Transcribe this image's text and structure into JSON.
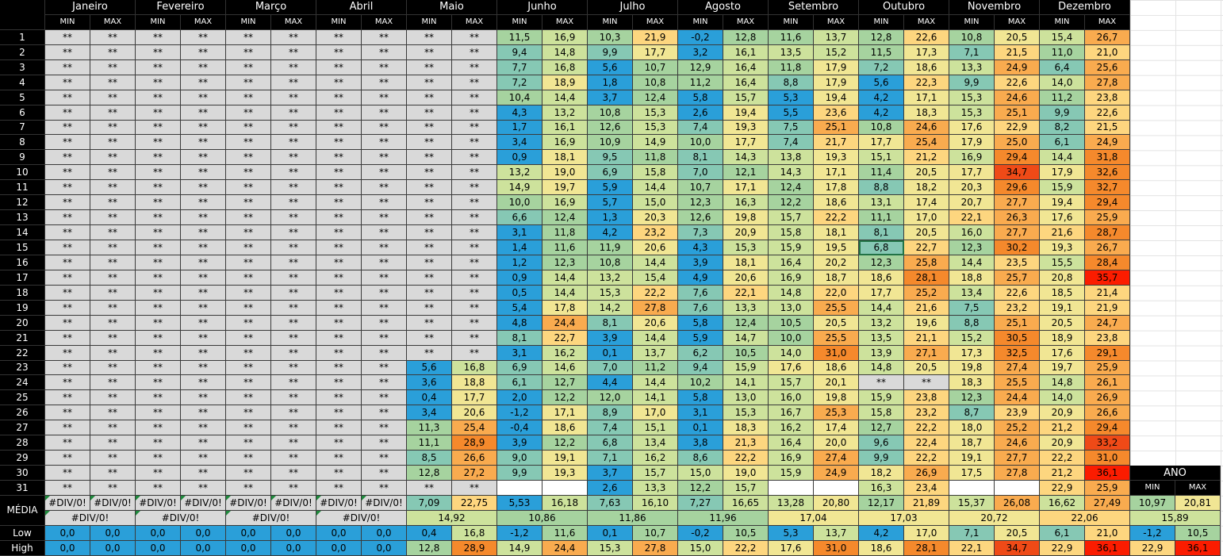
{
  "months": [
    "Janeiro",
    "Fevereiro",
    "Março",
    "Abril",
    "Maio",
    "Junho",
    "Julho",
    "Agosto",
    "Setembro",
    "Outubro",
    "Novembro",
    "Dezembro"
  ],
  "subheaders": [
    "MIN",
    "MAX"
  ],
  "rows": [
    {
      "day": "1",
      "cells": [
        "**",
        "**",
        "**",
        "**",
        "**",
        "**",
        "**",
        "**",
        "**",
        "**",
        "11,5",
        "16,9",
        "10,3",
        "21,9",
        "-0,2",
        "12,8",
        "11,6",
        "13,7",
        "12,8",
        "22,6",
        "10,8",
        "20,5",
        "15,4",
        "26,7"
      ]
    },
    {
      "day": "2",
      "cells": [
        "**",
        "**",
        "**",
        "**",
        "**",
        "**",
        "**",
        "**",
        "**",
        "**",
        "9,4",
        "14,8",
        "9,9",
        "17,7",
        "3,2",
        "16,1",
        "13,5",
        "15,2",
        "11,5",
        "17,3",
        "7,1",
        "21,5",
        "11,0",
        "21,0"
      ]
    },
    {
      "day": "3",
      "cells": [
        "**",
        "**",
        "**",
        "**",
        "**",
        "**",
        "**",
        "**",
        "**",
        "**",
        "7,7",
        "16,8",
        "5,6",
        "10,7",
        "12,9",
        "16,4",
        "11,8",
        "17,9",
        "7,2",
        "18,6",
        "13,3",
        "24,9",
        "6,4",
        "25,6"
      ]
    },
    {
      "day": "4",
      "cells": [
        "**",
        "**",
        "**",
        "**",
        "**",
        "**",
        "**",
        "**",
        "**",
        "**",
        "7,2",
        "18,9",
        "1,8",
        "10,8",
        "11,2",
        "16,4",
        "8,8",
        "17,9",
        "5,6",
        "22,3",
        "9,9",
        "22,6",
        "14,0",
        "27,8"
      ]
    },
    {
      "day": "5",
      "cells": [
        "**",
        "**",
        "**",
        "**",
        "**",
        "**",
        "**",
        "**",
        "**",
        "**",
        "10,4",
        "14,4",
        "3,7",
        "12,4",
        "5,8",
        "15,7",
        "5,3",
        "19,4",
        "4,2",
        "17,1",
        "15,3",
        "24,6",
        "11,2",
        "23,8"
      ]
    },
    {
      "day": "6",
      "cells": [
        "**",
        "**",
        "**",
        "**",
        "**",
        "**",
        "**",
        "**",
        "**",
        "**",
        "4,3",
        "13,2",
        "10,8",
        "15,3",
        "2,6",
        "19,4",
        "5,5",
        "23,6",
        "4,2",
        "18,3",
        "15,3",
        "25,1",
        "9,9",
        "22,6"
      ]
    },
    {
      "day": "7",
      "cells": [
        "**",
        "**",
        "**",
        "**",
        "**",
        "**",
        "**",
        "**",
        "**",
        "**",
        "1,7",
        "16,1",
        "12,6",
        "15,3",
        "7,4",
        "19,3",
        "7,5",
        "25,1",
        "10,8",
        "24,6",
        "17,6",
        "22,9",
        "8,2",
        "21,5"
      ]
    },
    {
      "day": "8",
      "cells": [
        "**",
        "**",
        "**",
        "**",
        "**",
        "**",
        "**",
        "**",
        "**",
        "**",
        "3,4",
        "16,9",
        "10,9",
        "14,9",
        "10,0",
        "17,7",
        "7,4",
        "21,7",
        "17,7",
        "25,4",
        "17,9",
        "25,0",
        "6,1",
        "24,9"
      ]
    },
    {
      "day": "9",
      "cells": [
        "**",
        "**",
        "**",
        "**",
        "**",
        "**",
        "**",
        "**",
        "**",
        "**",
        "0,9",
        "18,1",
        "9,5",
        "11,8",
        "8,1",
        "14,3",
        "13,8",
        "19,3",
        "15,1",
        "21,2",
        "16,9",
        "29,4",
        "14,4",
        "31,8"
      ]
    },
    {
      "day": "10",
      "cells": [
        "**",
        "**",
        "**",
        "**",
        "**",
        "**",
        "**",
        "**",
        "**",
        "**",
        "13,2",
        "19,0",
        "6,9",
        "15,8",
        "7,0",
        "12,1",
        "14,3",
        "17,1",
        "11,4",
        "20,5",
        "17,7",
        "34,7",
        "17,9",
        "32,6"
      ]
    },
    {
      "day": "11",
      "cells": [
        "**",
        "**",
        "**",
        "**",
        "**",
        "**",
        "**",
        "**",
        "**",
        "**",
        "14,9",
        "19,7",
        "5,9",
        "14,4",
        "10,7",
        "17,1",
        "12,4",
        "17,8",
        "8,8",
        "18,2",
        "20,3",
        "29,6",
        "15,9",
        "32,7"
      ]
    },
    {
      "day": "12",
      "cells": [
        "**",
        "**",
        "**",
        "**",
        "**",
        "**",
        "**",
        "**",
        "**",
        "**",
        "10,0",
        "16,9",
        "5,7",
        "15,0",
        "12,3",
        "16,3",
        "12,2",
        "18,6",
        "13,1",
        "17,4",
        "20,7",
        "27,7",
        "19,4",
        "29,4"
      ]
    },
    {
      "day": "13",
      "cells": [
        "**",
        "**",
        "**",
        "**",
        "**",
        "**",
        "**",
        "**",
        "**",
        "**",
        "6,6",
        "12,4",
        "1,3",
        "20,3",
        "12,6",
        "19,8",
        "15,7",
        "22,2",
        "11,1",
        "17,0",
        "22,1",
        "26,3",
        "17,6",
        "25,9"
      ]
    },
    {
      "day": "14",
      "cells": [
        "**",
        "**",
        "**",
        "**",
        "**",
        "**",
        "**",
        "**",
        "**",
        "**",
        "3,1",
        "11,8",
        "4,2",
        "23,2",
        "7,3",
        "20,9",
        "15,8",
        "18,1",
        "8,1",
        "20,5",
        "16,0",
        "27,7",
        "21,6",
        "28,7"
      ]
    },
    {
      "day": "15",
      "cells": [
        "**",
        "**",
        "**",
        "**",
        "**",
        "**",
        "**",
        "**",
        "**",
        "**",
        "1,4",
        "11,6",
        "11,9",
        "20,6",
        "4,3",
        "15,3",
        "15,9",
        "19,5",
        "6,8",
        "22,7",
        "12,3",
        "30,2",
        "19,3",
        "26,7"
      ]
    },
    {
      "day": "16",
      "cells": [
        "**",
        "**",
        "**",
        "**",
        "**",
        "**",
        "**",
        "**",
        "**",
        "**",
        "1,2",
        "12,3",
        "10,8",
        "14,4",
        "3,9",
        "18,1",
        "16,4",
        "20,2",
        "12,3",
        "25,8",
        "14,4",
        "23,5",
        "15,5",
        "28,4"
      ]
    },
    {
      "day": "17",
      "cells": [
        "**",
        "**",
        "**",
        "**",
        "**",
        "**",
        "**",
        "**",
        "**",
        "**",
        "0,9",
        "14,4",
        "13,2",
        "15,4",
        "4,9",
        "20,6",
        "16,9",
        "18,7",
        "18,6",
        "28,1",
        "18,8",
        "25,7",
        "20,8",
        "35,7"
      ]
    },
    {
      "day": "18",
      "cells": [
        "**",
        "**",
        "**",
        "**",
        "**",
        "**",
        "**",
        "**",
        "**",
        "**",
        "0,5",
        "14,4",
        "15,3",
        "22,2",
        "7,6",
        "22,1",
        "14,8",
        "22,0",
        "17,7",
        "25,2",
        "13,4",
        "22,6",
        "18,5",
        "21,4"
      ]
    },
    {
      "day": "19",
      "cells": [
        "**",
        "**",
        "**",
        "**",
        "**",
        "**",
        "**",
        "**",
        "**",
        "**",
        "5,4",
        "17,8",
        "14,2",
        "27,8",
        "7,6",
        "13,3",
        "13,0",
        "25,5",
        "14,4",
        "21,6",
        "7,5",
        "23,2",
        "19,1",
        "21,9"
      ]
    },
    {
      "day": "20",
      "cells": [
        "**",
        "**",
        "**",
        "**",
        "**",
        "**",
        "**",
        "**",
        "**",
        "**",
        "4,8",
        "24,4",
        "8,1",
        "20,6",
        "5,8",
        "12,4",
        "10,5",
        "20,5",
        "13,2",
        "19,6",
        "8,8",
        "25,1",
        "20,5",
        "24,7"
      ]
    },
    {
      "day": "21",
      "cells": [
        "**",
        "**",
        "**",
        "**",
        "**",
        "**",
        "**",
        "**",
        "**",
        "**",
        "8,1",
        "22,7",
        "3,9",
        "14,4",
        "5,9",
        "14,7",
        "10,0",
        "25,5",
        "13,5",
        "21,1",
        "15,2",
        "30,5",
        "18,9",
        "23,8"
      ]
    },
    {
      "day": "22",
      "cells": [
        "**",
        "**",
        "**",
        "**",
        "**",
        "**",
        "**",
        "**",
        "**",
        "**",
        "3,1",
        "16,2",
        "0,1",
        "13,7",
        "6,2",
        "10,5",
        "14,0",
        "31,0",
        "13,9",
        "27,1",
        "17,3",
        "32,5",
        "17,6",
        "29,1"
      ]
    },
    {
      "day": "23",
      "cells": [
        "**",
        "**",
        "**",
        "**",
        "**",
        "**",
        "**",
        "**",
        "5,6",
        "16,8",
        "6,9",
        "14,6",
        "7,0",
        "11,2",
        "9,4",
        "15,9",
        "17,6",
        "18,6",
        "14,8",
        "20,5",
        "19,8",
        "27,4",
        "19,7",
        "25,9"
      ]
    },
    {
      "day": "24",
      "cells": [
        "**",
        "**",
        "**",
        "**",
        "**",
        "**",
        "**",
        "**",
        "3,6",
        "18,8",
        "6,1",
        "12,7",
        "4,4",
        "14,4",
        "10,2",
        "14,1",
        "15,7",
        "20,1",
        "**",
        "**",
        "18,3",
        "25,5",
        "14,8",
        "26,1"
      ]
    },
    {
      "day": "25",
      "cells": [
        "**",
        "**",
        "**",
        "**",
        "**",
        "**",
        "**",
        "**",
        "0,4",
        "17,7",
        "2,0",
        "12,2",
        "12,0",
        "14,1",
        "5,8",
        "13,0",
        "16,0",
        "19,8",
        "15,9",
        "23,8",
        "12,3",
        "24,4",
        "14,0",
        "26,9"
      ]
    },
    {
      "day": "26",
      "cells": [
        "**",
        "**",
        "**",
        "**",
        "**",
        "**",
        "**",
        "**",
        "3,4",
        "20,6",
        "-1,2",
        "17,1",
        "8,9",
        "17,0",
        "3,1",
        "15,3",
        "16,7",
        "25,3",
        "15,8",
        "23,2",
        "8,7",
        "23,9",
        "20,9",
        "26,6"
      ]
    },
    {
      "day": "27",
      "cells": [
        "**",
        "**",
        "**",
        "**",
        "**",
        "**",
        "**",
        "**",
        "11,3",
        "25,4",
        "-0,4",
        "18,6",
        "7,4",
        "15,1",
        "0,1",
        "18,3",
        "16,2",
        "17,4",
        "12,7",
        "22,2",
        "18,0",
        "25,2",
        "21,2",
        "29,4"
      ]
    },
    {
      "day": "28",
      "cells": [
        "**",
        "**",
        "**",
        "**",
        "**",
        "**",
        "**",
        "**",
        "11,1",
        "28,9",
        "3,9",
        "12,2",
        "6,8",
        "13,4",
        "3,8",
        "21,3",
        "16,4",
        "20,0",
        "9,6",
        "22,4",
        "18,7",
        "24,6",
        "20,9",
        "33,2"
      ]
    },
    {
      "day": "29",
      "cells": [
        "**",
        "**",
        "**",
        "**",
        "**",
        "**",
        "**",
        "**",
        "8,5",
        "26,6",
        "9,0",
        "19,1",
        "7,1",
        "16,2",
        "8,6",
        "22,2",
        "16,9",
        "27,4",
        "9,9",
        "22,2",
        "19,1",
        "27,7",
        "22,2",
        "31,0"
      ]
    },
    {
      "day": "30",
      "cells": [
        "**",
        "**",
        "**",
        "**",
        "**",
        "**",
        "**",
        "**",
        "12,8",
        "27,2",
        "9,9",
        "19,3",
        "3,7",
        "15,7",
        "15,0",
        "19,0",
        "15,9",
        "24,9",
        "18,2",
        "26,9",
        "17,5",
        "27,8",
        "21,2",
        "36,1"
      ]
    },
    {
      "day": "31",
      "cells": [
        "**",
        "**",
        "**",
        "**",
        "**",
        "**",
        "**",
        "**",
        "**",
        "**",
        null,
        null,
        "2,6",
        "13,3",
        "12,2",
        "15,7",
        null,
        null,
        "16,3",
        "23,4",
        null,
        null,
        "22,9",
        "25,9"
      ]
    }
  ],
  "summary": {
    "media_label": "MÉDIA",
    "media": [
      "#DIV/0!",
      "#DIV/0!",
      "#DIV/0!",
      "#DIV/0!",
      "#DIV/0!",
      "#DIV/0!",
      "#DIV/0!",
      "#DIV/0!",
      "7,09",
      "22,75",
      "5,53",
      "16,18",
      "7,63",
      "16,10",
      "7,27",
      "16,65",
      "13,28",
      "20,80",
      "12,17",
      "21,89",
      "15,37",
      "26,08",
      "16,62",
      "27,49"
    ],
    "media_avg": [
      "#DIV/0!",
      "#DIV/0!",
      "#DIV/0!",
      "#DIV/0!",
      "14,92",
      "10,86",
      "11,86",
      "11,96",
      "17,04",
      "17,03",
      "20,72",
      "22,06"
    ],
    "low_label": "Low",
    "low": [
      "0,0",
      "0,0",
      "0,0",
      "0,0",
      "0,0",
      "0,0",
      "0,0",
      "0,0",
      "0,4",
      "16,8",
      "-1,2",
      "11,6",
      "0,1",
      "10,7",
      "-0,2",
      "10,5",
      "5,3",
      "13,7",
      "4,2",
      "17,0",
      "7,1",
      "20,5",
      "6,1",
      "21,0"
    ],
    "high_label": "High",
    "high": [
      "0,0",
      "0,0",
      "0,0",
      "0,0",
      "0,0",
      "0,0",
      "0,0",
      "0,0",
      "12,8",
      "28,9",
      "14,9",
      "24,4",
      "15,3",
      "27,8",
      "15,0",
      "22,2",
      "17,6",
      "31,0",
      "18,6",
      "28,1",
      "22,1",
      "34,7",
      "22,9",
      "36,1"
    ]
  },
  "year": {
    "label": "ANO",
    "media": [
      "10,97",
      "20,81"
    ],
    "media_avg": "15,89",
    "low": [
      "-1,2",
      "10,5"
    ],
    "high": [
      "22,9",
      "36,1"
    ]
  }
}
